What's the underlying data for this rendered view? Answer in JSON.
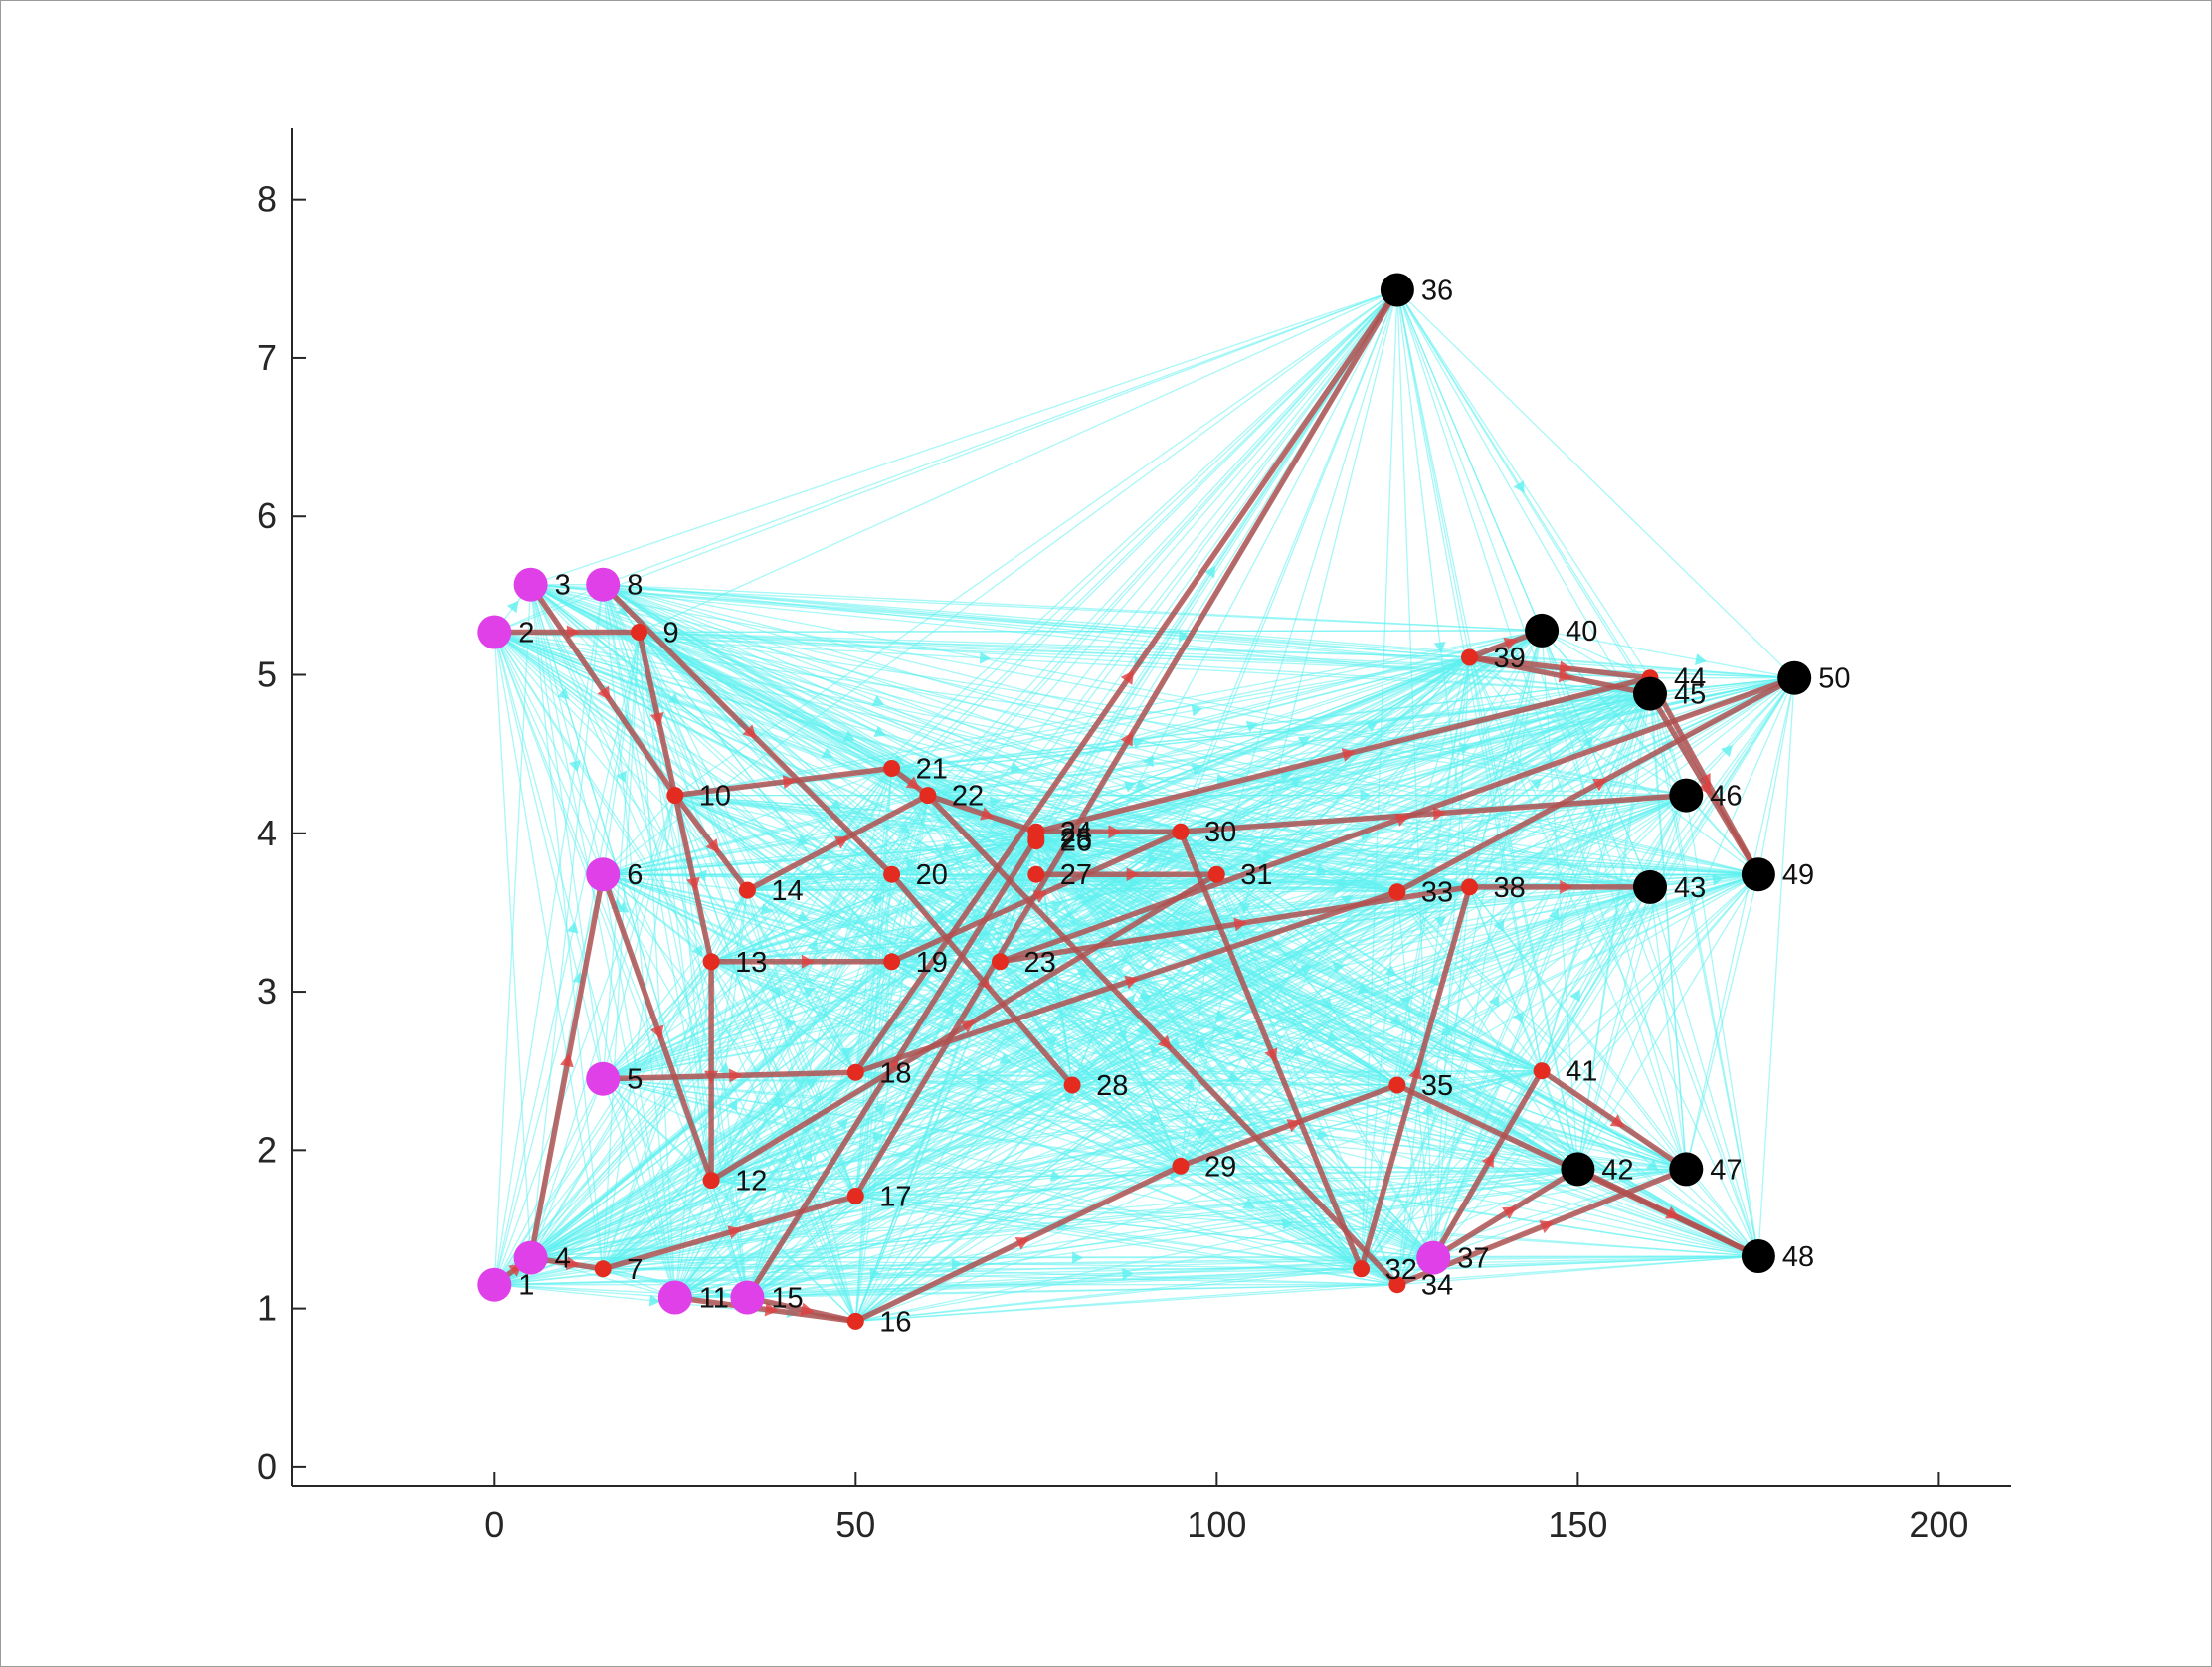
{
  "chart_data": {
    "type": "scatter",
    "title": "",
    "xlabel": "",
    "ylabel": "",
    "xlim": [
      -28,
      210
    ],
    "ylim": [
      -0.12,
      8.45
    ],
    "xticks": [
      0,
      50,
      100,
      150,
      200
    ],
    "yticks": [
      0,
      1,
      2,
      3,
      4,
      5,
      6,
      7,
      8
    ],
    "grid": false,
    "legend": "none",
    "colors": {
      "source_nodes": "#e040e8",
      "sink_nodes": "#000000",
      "intermediate_nodes": "#e32b1f",
      "candidate_edges": "#5ff0f0",
      "flow_edges": "#b05050",
      "axis": "#262626"
    },
    "nodes": [
      {
        "id": "1",
        "x": 0,
        "y": 1.15,
        "group": "source"
      },
      {
        "id": "2",
        "x": 0,
        "y": 5.27,
        "group": "source"
      },
      {
        "id": "3",
        "x": 5,
        "y": 5.57,
        "group": "source"
      },
      {
        "id": "4",
        "x": 5,
        "y": 1.32,
        "group": "source"
      },
      {
        "id": "5",
        "x": 15,
        "y": 2.45,
        "group": "source"
      },
      {
        "id": "6",
        "x": 15,
        "y": 3.74,
        "group": "source"
      },
      {
        "id": "7",
        "x": 15,
        "y": 1.25,
        "group": "intermediate"
      },
      {
        "id": "8",
        "x": 15,
        "y": 5.57,
        "group": "source"
      },
      {
        "id": "9",
        "x": 20,
        "y": 5.27,
        "group": "intermediate"
      },
      {
        "id": "10",
        "x": 25,
        "y": 4.24,
        "group": "intermediate"
      },
      {
        "id": "11",
        "x": 25,
        "y": 1.07,
        "group": "source"
      },
      {
        "id": "12",
        "x": 30,
        "y": 1.81,
        "group": "intermediate"
      },
      {
        "id": "13",
        "x": 30,
        "y": 3.19,
        "group": "intermediate"
      },
      {
        "id": "14",
        "x": 35,
        "y": 3.64,
        "group": "intermediate"
      },
      {
        "id": "15",
        "x": 35,
        "y": 1.07,
        "group": "source"
      },
      {
        "id": "16",
        "x": 50,
        "y": 0.92,
        "group": "intermediate"
      },
      {
        "id": "17",
        "x": 50,
        "y": 1.71,
        "group": "intermediate"
      },
      {
        "id": "18",
        "x": 50,
        "y": 2.49,
        "group": "intermediate"
      },
      {
        "id": "19",
        "x": 55,
        "y": 3.19,
        "group": "intermediate"
      },
      {
        "id": "20",
        "x": 55,
        "y": 3.74,
        "group": "intermediate"
      },
      {
        "id": "21",
        "x": 55,
        "y": 4.41,
        "group": "intermediate"
      },
      {
        "id": "22",
        "x": 60,
        "y": 4.24,
        "group": "intermediate"
      },
      {
        "id": "23",
        "x": 70,
        "y": 3.19,
        "group": "intermediate"
      },
      {
        "id": "24",
        "x": 75,
        "y": 4.01,
        "group": "intermediate"
      },
      {
        "id": "25",
        "x": 75,
        "y": 3.97,
        "group": "intermediate"
      },
      {
        "id": "26",
        "x": 75,
        "y": 3.95,
        "group": "intermediate"
      },
      {
        "id": "27",
        "x": 75,
        "y": 3.74,
        "group": "intermediate"
      },
      {
        "id": "28",
        "x": 80,
        "y": 2.41,
        "group": "intermediate"
      },
      {
        "id": "29",
        "x": 95,
        "y": 1.9,
        "group": "intermediate"
      },
      {
        "id": "30",
        "x": 95,
        "y": 4.01,
        "group": "intermediate"
      },
      {
        "id": "31",
        "x": 100,
        "y": 3.74,
        "group": "intermediate"
      },
      {
        "id": "32",
        "x": 120,
        "y": 1.25,
        "group": "intermediate"
      },
      {
        "id": "33",
        "x": 125,
        "y": 3.63,
        "group": "intermediate"
      },
      {
        "id": "34",
        "x": 125,
        "y": 1.15,
        "group": "intermediate"
      },
      {
        "id": "35",
        "x": 125,
        "y": 2.41,
        "group": "intermediate"
      },
      {
        "id": "36",
        "x": 125,
        "y": 7.43,
        "group": "sink"
      },
      {
        "id": "37",
        "x": 130,
        "y": 1.32,
        "group": "source"
      },
      {
        "id": "38",
        "x": 135,
        "y": 3.66,
        "group": "intermediate"
      },
      {
        "id": "39",
        "x": 135,
        "y": 5.11,
        "group": "intermediate"
      },
      {
        "id": "40",
        "x": 145,
        "y": 5.28,
        "group": "sink"
      },
      {
        "id": "41",
        "x": 145,
        "y": 2.5,
        "group": "intermediate"
      },
      {
        "id": "42",
        "x": 150,
        "y": 1.88,
        "group": "sink"
      },
      {
        "id": "43",
        "x": 160,
        "y": 3.66,
        "group": "sink"
      },
      {
        "id": "44",
        "x": 160,
        "y": 4.98,
        "group": "intermediate"
      },
      {
        "id": "45",
        "x": 160,
        "y": 4.88,
        "group": "sink"
      },
      {
        "id": "46",
        "x": 165,
        "y": 4.24,
        "group": "sink"
      },
      {
        "id": "47",
        "x": 165,
        "y": 1.88,
        "group": "sink"
      },
      {
        "id": "48",
        "x": 175,
        "y": 1.33,
        "group": "sink"
      },
      {
        "id": "49",
        "x": 175,
        "y": 3.74,
        "group": "sink"
      },
      {
        "id": "50",
        "x": 180,
        "y": 4.98,
        "group": "sink"
      }
    ],
    "flow_edges": [
      [
        "2",
        "9"
      ],
      [
        "9",
        "10"
      ],
      [
        "3",
        "10"
      ],
      [
        "10",
        "14"
      ],
      [
        "10",
        "13"
      ],
      [
        "10",
        "21"
      ],
      [
        "13",
        "19"
      ],
      [
        "13",
        "12"
      ],
      [
        "8",
        "20"
      ],
      [
        "20",
        "28"
      ],
      [
        "21",
        "22"
      ],
      [
        "22",
        "24"
      ],
      [
        "22",
        "34"
      ],
      [
        "14",
        "22"
      ],
      [
        "6",
        "12"
      ],
      [
        "4",
        "6"
      ],
      [
        "4",
        "7"
      ],
      [
        "7",
        "17"
      ],
      [
        "17",
        "36"
      ],
      [
        "1",
        "4"
      ],
      [
        "11",
        "16"
      ],
      [
        "15",
        "16"
      ],
      [
        "16",
        "29"
      ],
      [
        "15",
        "25"
      ],
      [
        "5",
        "18"
      ],
      [
        "18",
        "36"
      ],
      [
        "18",
        "33"
      ],
      [
        "19",
        "30"
      ],
      [
        "12",
        "31"
      ],
      [
        "24",
        "30"
      ],
      [
        "24",
        "44"
      ],
      [
        "30",
        "46"
      ],
      [
        "30",
        "32"
      ],
      [
        "27",
        "31"
      ],
      [
        "23",
        "38"
      ],
      [
        "38",
        "43"
      ],
      [
        "39",
        "40"
      ],
      [
        "39",
        "44"
      ],
      [
        "39",
        "45"
      ],
      [
        "44",
        "49"
      ],
      [
        "45",
        "49"
      ],
      [
        "33",
        "50"
      ],
      [
        "29",
        "35"
      ],
      [
        "35",
        "48"
      ],
      [
        "32",
        "38"
      ],
      [
        "37",
        "41"
      ],
      [
        "37",
        "42"
      ],
      [
        "41",
        "47"
      ],
      [
        "42",
        "48"
      ],
      [
        "34",
        "47"
      ],
      [
        "23",
        "50"
      ]
    ]
  }
}
